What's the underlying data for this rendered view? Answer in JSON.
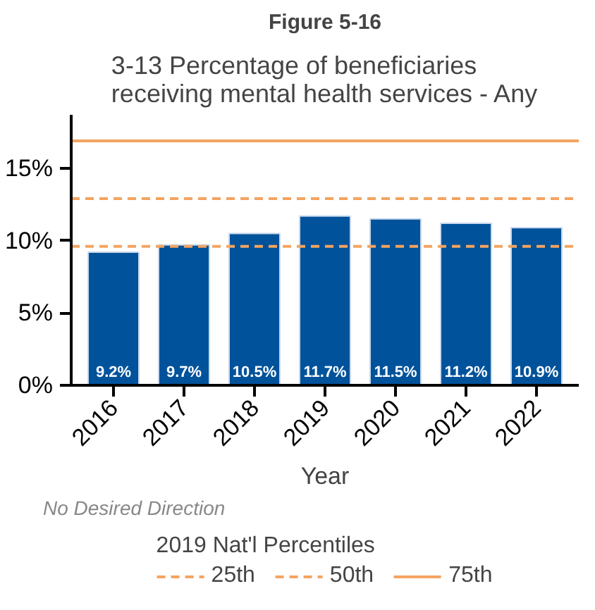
{
  "chart_data": {
    "type": "bar",
    "title": "Figure 5-16",
    "subtitle": "3-13 Percentage of beneficiaries receiving mental health services - Any",
    "xlabel": "Year",
    "categories": [
      "2016",
      "2017",
      "2018",
      "2019",
      "2020",
      "2021",
      "2022"
    ],
    "values": [
      9.2,
      9.7,
      10.5,
      11.7,
      11.5,
      11.2,
      10.9
    ],
    "color": "#00529b",
    "value_labels": [
      "9.2%",
      "9.7%",
      "10.5%",
      "11.7%",
      "11.5%",
      "11.2%",
      "10.9%"
    ],
    "ylim": [
      0,
      18.7
    ],
    "yticks": [
      {
        "value": 0,
        "label": "0%"
      },
      {
        "value": 5,
        "label": "5%"
      },
      {
        "value": 10,
        "label": "10%"
      },
      {
        "value": 15,
        "label": "15%"
      }
    ],
    "ref_lines": [
      {
        "axis": "y",
        "value": 9.6,
        "label": "25th",
        "color": "#f4a460",
        "line_style": "dashed"
      },
      {
        "axis": "y",
        "value": 12.9,
        "label": "50th",
        "color": "#f4a460",
        "line_style": "dashed"
      },
      {
        "axis": "y",
        "value": 16.9,
        "label": "75th",
        "color": "#f4a460",
        "line_style": "solid"
      }
    ],
    "legend": "bottom",
    "legend_title": "2019 Nat'l Percentiles",
    "annotations": [
      "No Desired Direction"
    ],
    "grid": false
  }
}
